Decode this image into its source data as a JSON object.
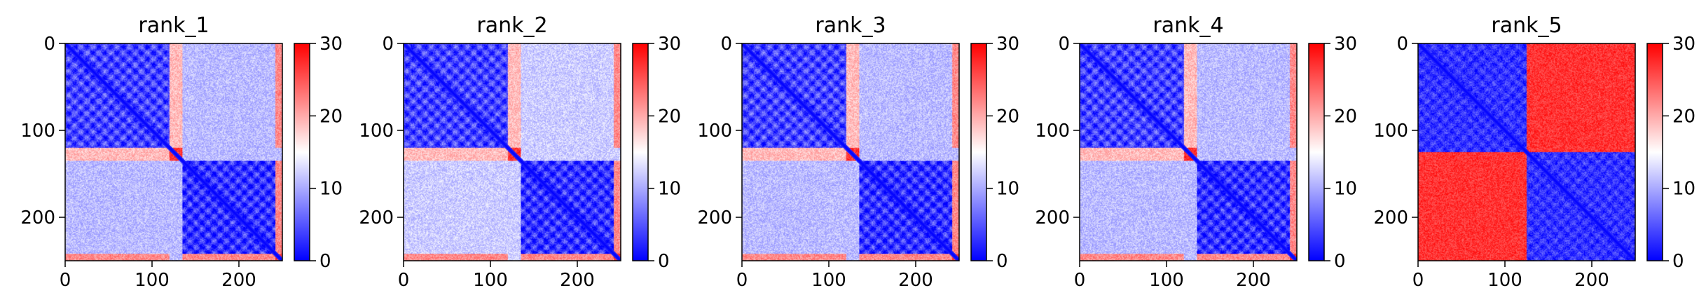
{
  "chart_data": [
    {
      "type": "heatmap",
      "title": "rank_1",
      "xlim": [
        0,
        250
      ],
      "ylim": [
        250,
        0
      ],
      "xticks": [
        0,
        100,
        200
      ],
      "yticks": [
        0,
        100,
        200
      ],
      "colorbar": {
        "min": 0,
        "max": 30,
        "ticks": [
          0,
          10,
          20,
          30
        ],
        "colormap": "bwr",
        "colors": [
          "#0000ff",
          "#ffffff",
          "#ff0000"
        ]
      },
      "blocks": [
        {
          "range": [
            0,
            120
          ],
          "level": 4,
          "stripe": 2
        },
        {
          "range": [
            120,
            135
          ],
          "level": 27,
          "stripe": 0
        },
        {
          "range": [
            135,
            242
          ],
          "level": 3,
          "stripe": 2
        },
        {
          "range": [
            242,
            250
          ],
          "level": 27,
          "stripe": 0
        }
      ],
      "cross_level": 11,
      "overrides": [
        {
          "rows": [
            0,
            120
          ],
          "cols": [
            120,
            135
          ],
          "level": 19
        },
        {
          "rows": [
            0,
            120
          ],
          "cols": [
            242,
            250
          ],
          "level": 22
        },
        {
          "rows": [
            135,
            242
          ],
          "cols": [
            242,
            250
          ],
          "level": 22
        }
      ]
    },
    {
      "type": "heatmap",
      "title": "rank_2",
      "xlim": [
        0,
        250
      ],
      "ylim": [
        250,
        0
      ],
      "xticks": [
        0,
        100,
        200
      ],
      "yticks": [
        0,
        100,
        200
      ],
      "colorbar": {
        "min": 0,
        "max": 30,
        "ticks": [
          0,
          10,
          20,
          30
        ],
        "colormap": "bwr",
        "colors": [
          "#0000ff",
          "#ffffff",
          "#ff0000"
        ]
      },
      "blocks": [
        {
          "range": [
            0,
            120
          ],
          "level": 4,
          "stripe": 2
        },
        {
          "range": [
            120,
            135
          ],
          "level": 27,
          "stripe": 0
        },
        {
          "range": [
            135,
            242
          ],
          "level": 3,
          "stripe": 2
        },
        {
          "range": [
            242,
            250
          ],
          "level": 27,
          "stripe": 0
        }
      ],
      "cross_level": 12,
      "overrides": [
        {
          "rows": [
            0,
            120
          ],
          "cols": [
            120,
            135
          ],
          "level": 19
        },
        {
          "rows": [
            0,
            120
          ],
          "cols": [
            242,
            250
          ],
          "level": 22
        },
        {
          "rows": [
            135,
            242
          ],
          "cols": [
            242,
            250
          ],
          "level": 22
        }
      ]
    },
    {
      "type": "heatmap",
      "title": "rank_3",
      "xlim": [
        0,
        250
      ],
      "ylim": [
        250,
        0
      ],
      "xticks": [
        0,
        100,
        200
      ],
      "yticks": [
        0,
        100,
        200
      ],
      "colorbar": {
        "min": 0,
        "max": 30,
        "ticks": [
          0,
          10,
          20,
          30
        ],
        "colormap": "bwr",
        "colors": [
          "#0000ff",
          "#ffffff",
          "#ff0000"
        ]
      },
      "blocks": [
        {
          "range": [
            0,
            120
          ],
          "level": 4,
          "stripe": 2
        },
        {
          "range": [
            120,
            135
          ],
          "level": 27,
          "stripe": 0
        },
        {
          "range": [
            135,
            242
          ],
          "level": 3,
          "stripe": 2
        },
        {
          "range": [
            242,
            250
          ],
          "level": 27,
          "stripe": 0
        }
      ],
      "cross_level": 11,
      "overrides": [
        {
          "rows": [
            0,
            120
          ],
          "cols": [
            120,
            135
          ],
          "level": 19
        },
        {
          "rows": [
            0,
            120
          ],
          "cols": [
            242,
            250
          ],
          "level": 22
        },
        {
          "rows": [
            135,
            242
          ],
          "cols": [
            242,
            250
          ],
          "level": 22
        }
      ]
    },
    {
      "type": "heatmap",
      "title": "rank_4",
      "xlim": [
        0,
        250
      ],
      "ylim": [
        250,
        0
      ],
      "xticks": [
        0,
        100,
        200
      ],
      "yticks": [
        0,
        100,
        200
      ],
      "colorbar": {
        "min": 0,
        "max": 30,
        "ticks": [
          0,
          10,
          20,
          30
        ],
        "colormap": "bwr",
        "colors": [
          "#0000ff",
          "#ffffff",
          "#ff0000"
        ]
      },
      "blocks": [
        {
          "range": [
            0,
            120
          ],
          "level": 4,
          "stripe": 2
        },
        {
          "range": [
            120,
            135
          ],
          "level": 27,
          "stripe": 0
        },
        {
          "range": [
            135,
            242
          ],
          "level": 3,
          "stripe": 2
        },
        {
          "range": [
            242,
            250
          ],
          "level": 27,
          "stripe": 0
        }
      ],
      "cross_level": 11,
      "overrides": [
        {
          "rows": [
            0,
            120
          ],
          "cols": [
            120,
            135
          ],
          "level": 19
        },
        {
          "rows": [
            0,
            120
          ],
          "cols": [
            242,
            250
          ],
          "level": 22
        },
        {
          "rows": [
            135,
            242
          ],
          "cols": [
            242,
            250
          ],
          "level": 22
        }
      ]
    },
    {
      "type": "heatmap",
      "title": "rank_5",
      "xlim": [
        0,
        250
      ],
      "ylim": [
        250,
        0
      ],
      "xticks": [
        0,
        100,
        200
      ],
      "yticks": [
        0,
        100,
        200
      ],
      "colorbar": {
        "min": 0,
        "max": 30,
        "ticks": [
          0,
          10,
          20,
          30
        ],
        "colormap": "bwr",
        "colors": [
          "#0000ff",
          "#ffffff",
          "#ff0000"
        ]
      },
      "blocks": [
        {
          "range": [
            0,
            125
          ],
          "level": 3,
          "stripe": 1
        },
        {
          "range": [
            125,
            250
          ],
          "level": 3,
          "stripe": 1
        }
      ],
      "cross_level": 27,
      "overrides": []
    }
  ]
}
